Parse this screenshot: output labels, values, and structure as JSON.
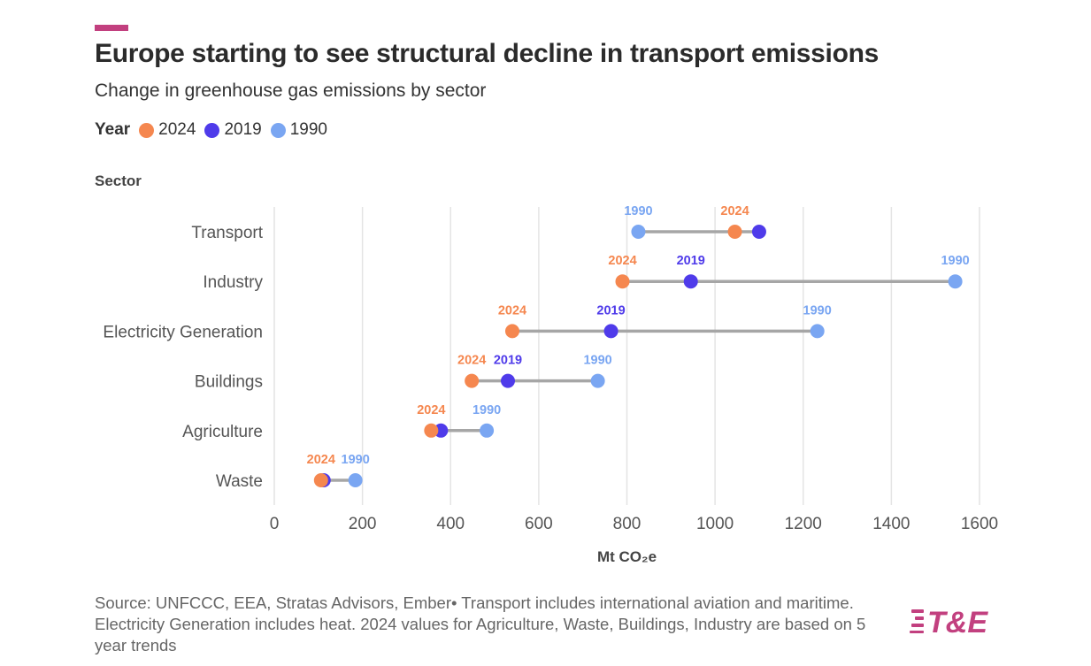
{
  "header": {
    "title": "Europe starting to see structural decline in transport emissions",
    "subtitle": "Change in greenhouse gas emissions by sector"
  },
  "legend": {
    "title": "Year",
    "items": [
      {
        "label": "2024",
        "color": "#f5874f"
      },
      {
        "label": "2019",
        "color": "#4f3bea"
      },
      {
        "label": "1990",
        "color": "#7aa6f2"
      }
    ]
  },
  "chart_data": {
    "type": "dumbbell",
    "y_axis_title": "Sector",
    "xlabel": "Mt CO₂e",
    "xlim": [
      0,
      1600
    ],
    "x_ticks": [
      "0",
      "200",
      "400",
      "600",
      "800",
      "1000",
      "1200",
      "1400",
      "1600"
    ],
    "grid": true,
    "legend_placement": "top-left",
    "categories": [
      "Transport",
      "Industry",
      "Electricity Generation",
      "Buildings",
      "Agriculture",
      "Waste"
    ],
    "series": [
      {
        "name": "2024",
        "color": "#f5874f",
        "values": [
          1045,
          790,
          540,
          448,
          356,
          106
        ]
      },
      {
        "name": "2019",
        "color": "#4f3bea",
        "values": [
          1100,
          945,
          764,
          530,
          378,
          112
        ]
      },
      {
        "name": "1990",
        "color": "#7aa6f2",
        "values": [
          826,
          1545,
          1232,
          734,
          482,
          184
        ]
      }
    ],
    "point_labels": [
      [
        "1990",
        "2024"
      ],
      [
        "2024",
        "2019",
        "1990"
      ],
      [
        "2024",
        "2019",
        "1990"
      ],
      [
        "2024",
        "2019",
        "1990"
      ],
      [
        "2024",
        "1990"
      ],
      [
        "2024",
        "1990"
      ]
    ]
  },
  "footer": {
    "source": "Source: UNFCCC, EEA, Stratas Advisors, Ember• Transport includes international aviation and maritime. Electricity Generation includes heat. 2024 values for Agriculture, Waste, Buildings, Industry are based on 5 year trends",
    "logo_text": "T&E",
    "logo_color": "#c2407f"
  }
}
